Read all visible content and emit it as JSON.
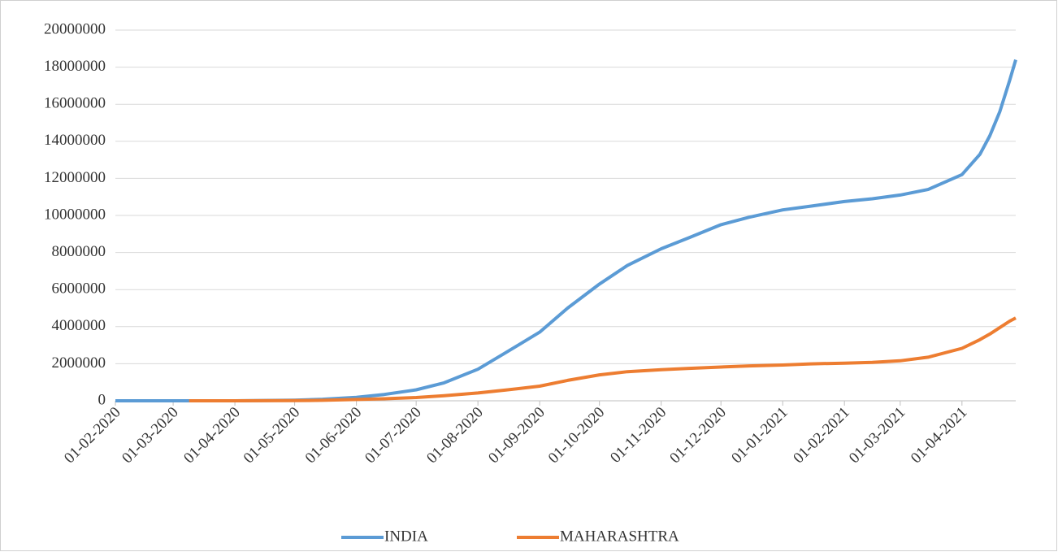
{
  "chart_data": {
    "type": "line",
    "x": [
      "01-02-2020",
      "01-03-2020",
      "09-03-2020",
      "01-04-2020",
      "01-05-2020",
      "15-05-2020",
      "01-06-2020",
      "15-06-2020",
      "01-07-2020",
      "15-07-2020",
      "01-08-2020",
      "15-08-2020",
      "01-09-2020",
      "15-09-2020",
      "01-10-2020",
      "15-10-2020",
      "01-11-2020",
      "15-11-2020",
      "01-12-2020",
      "15-12-2020",
      "01-01-2021",
      "15-01-2021",
      "01-02-2021",
      "15-02-2021",
      "01-03-2021",
      "15-03-2021",
      "01-04-2021",
      "10-04-2021",
      "15-04-2021",
      "20-04-2021",
      "25-04-2021",
      "28-04-2021"
    ],
    "series": [
      {
        "name": "INDIA",
        "color": "#5b9bd5",
        "values": [
          0,
          3,
          40,
          2000,
          35000,
          85000,
          190000,
          340000,
          590000,
          970000,
          1700000,
          2600000,
          3700000,
          5000000,
          6300000,
          7300000,
          8200000,
          8800000,
          9500000,
          9900000,
          10300000,
          10500000,
          10750000,
          10900000,
          11100000,
          11400000,
          12200000,
          13300000,
          14300000,
          15600000,
          17300000,
          18400000
        ]
      },
      {
        "name": "MAHARASHTRA",
        "color": "#ed7d31",
        "values": [
          null,
          null,
          0,
          300,
          10500,
          28000,
          68000,
          108000,
          175000,
          270000,
          420000,
          580000,
          790000,
          1100000,
          1400000,
          1570000,
          1680000,
          1750000,
          1820000,
          1880000,
          1930000,
          1990000,
          2030000,
          2070000,
          2160000,
          2350000,
          2830000,
          3300000,
          3600000,
          3950000,
          4300000,
          4470000
        ]
      }
    ],
    "xlim": [
      "01-02-2020",
      "28-04-2021"
    ],
    "xticks": [
      "01-02-2020",
      "01-03-2020",
      "01-04-2020",
      "01-05-2020",
      "01-06-2020",
      "01-07-2020",
      "01-08-2020",
      "01-09-2020",
      "01-10-2020",
      "01-11-2020",
      "01-12-2020",
      "01-01-2021",
      "01-02-2021",
      "01-03-2021",
      "01-04-2021"
    ],
    "ylim": [
      0,
      20000000
    ],
    "yticks": [
      0,
      2000000,
      4000000,
      6000000,
      8000000,
      10000000,
      12000000,
      14000000,
      16000000,
      18000000,
      20000000
    ],
    "grid": true,
    "legend": "bottom"
  }
}
